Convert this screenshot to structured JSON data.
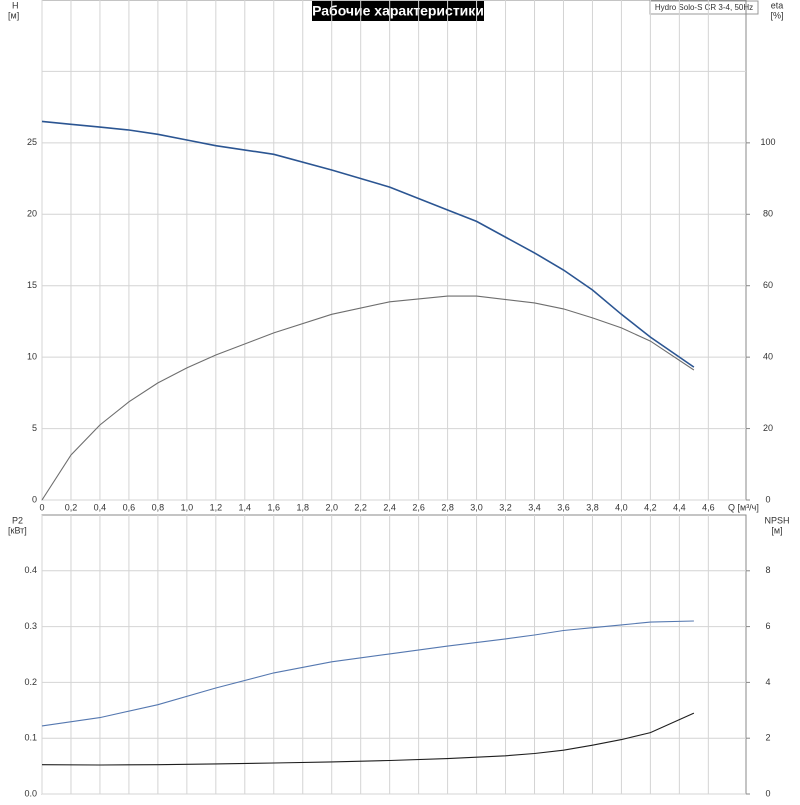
{
  "header": {
    "title": "Рабочие характеристики",
    "subtitle": "Hydro Solo-S CR 3-4, 50Hz"
  },
  "chart_data": [
    {
      "type": "line",
      "xlabel": "Q [м³/ч]",
      "ylabel": "H",
      "yunit": "[м]",
      "y2label": "eta",
      "y2unit": "[%]",
      "x": [
        0,
        0.2,
        0.4,
        0.6,
        0.8,
        1.0,
        1.2,
        1.6,
        2.0,
        2.4,
        2.8,
        3.0,
        3.4,
        3.6,
        3.8,
        4.0,
        4.2,
        4.5
      ],
      "series": [
        {
          "color": "#2b5592",
          "axis": "y",
          "values": [
            26.5,
            26.3,
            26.1,
            25.9,
            25.6,
            25.2,
            24.8,
            24.2,
            23.1,
            21.9,
            20.3,
            19.5,
            17.3,
            16.1,
            14.7,
            13.0,
            11.4,
            9.3
          ]
        },
        {
          "color": "#6e6e6e",
          "axis": "y2",
          "values": [
            0,
            12.6,
            21,
            27.5,
            32.8,
            37,
            40.6,
            46.8,
            52,
            55.5,
            57.1,
            57.1,
            55.2,
            53.5,
            51,
            48.2,
            44.5,
            36.4
          ]
        }
      ],
      "xlim": [
        0,
        4.86
      ],
      "xticks": [
        0,
        {
          "value": 0.2,
          "label": "0,2"
        },
        {
          "value": 0.4,
          "label": "0,4"
        },
        {
          "value": 0.6,
          "label": "0,6"
        },
        {
          "value": 0.8,
          "label": "0,8"
        },
        {
          "value": 1.0,
          "label": "1,0"
        },
        {
          "value": 1.2,
          "label": "1,2"
        },
        {
          "value": 1.4,
          "label": "1,4"
        },
        {
          "value": 1.6,
          "label": "1,6"
        },
        {
          "value": 1.8,
          "label": "1,8"
        },
        {
          "value": 2.0,
          "label": "2,0"
        },
        {
          "value": 2.2,
          "label": "2,2"
        },
        {
          "value": 2.4,
          "label": "2,4"
        },
        {
          "value": 2.6,
          "label": "2,6"
        },
        {
          "value": 2.8,
          "label": "2,8"
        },
        {
          "value": 3.0,
          "label": "3,0"
        },
        {
          "value": 3.2,
          "label": "3,2"
        },
        {
          "value": 3.4,
          "label": "3,4"
        },
        {
          "value": 3.6,
          "label": "3,6"
        },
        {
          "value": 3.8,
          "label": "3,8"
        },
        {
          "value": 4.0,
          "label": "4,0"
        },
        {
          "value": 4.2,
          "label": "4,2"
        },
        {
          "value": 4.4,
          "label": "4,4"
        },
        {
          "value": 4.6,
          "label": "4,6"
        }
      ],
      "ylim": [
        0,
        35
      ],
      "yticks": [
        0,
        5,
        10,
        15,
        20,
        25
      ],
      "y2lim": [
        0,
        140
      ],
      "y2ticks": [
        0,
        20,
        40,
        60,
        80,
        100
      ],
      "grid": true
    },
    {
      "type": "line",
      "ylabel": "P2",
      "yunit": "[кВт]",
      "y2label": "NPSH",
      "y2unit": "[м]",
      "x": [
        0,
        0.4,
        0.8,
        1.2,
        1.6,
        2.0,
        2.4,
        2.8,
        3.2,
        3.4,
        3.6,
        3.8,
        4.0,
        4.2,
        4.5
      ],
      "series": [
        {
          "color": "#5578b0",
          "axis": "y",
          "values": [
            0.122,
            0.137,
            0.16,
            0.19,
            0.217,
            0.237,
            0.251,
            0.265,
            0.278,
            0.285,
            0.293,
            0.298,
            0.303,
            0.308,
            0.31
          ]
        },
        {
          "color": "#1e1e1e",
          "axis": "y2",
          "values": [
            1.05,
            1.04,
            1.05,
            1.08,
            1.11,
            1.15,
            1.2,
            1.27,
            1.37,
            1.45,
            1.57,
            1.75,
            1.95,
            2.2,
            2.9
          ]
        }
      ],
      "xlim": [
        0,
        4.86
      ],
      "ylim": [
        0,
        0.5
      ],
      "yticks": [
        {
          "value": 0,
          "label": "0.0"
        },
        0.1,
        0.2,
        0.3,
        0.4
      ],
      "y2lim": [
        0,
        10
      ],
      "y2ticks": [
        0,
        2,
        4,
        6,
        8
      ],
      "grid": true
    }
  ]
}
